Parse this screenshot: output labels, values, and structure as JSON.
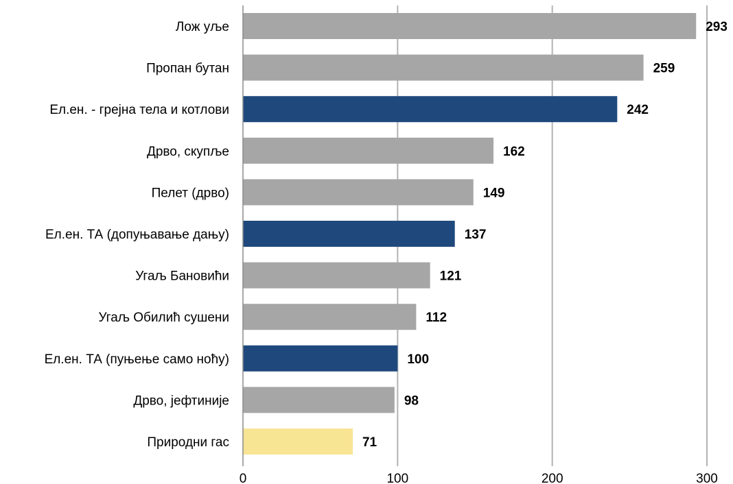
{
  "chart_data": {
    "type": "bar",
    "orientation": "horizontal",
    "categories": [
      "Лож уље",
      "Пропан бутан",
      "Ел.ен. - грејна тела и котлови",
      "Дрво, скупље",
      "Пелет (дрво)",
      "Ел.ен. ТА (допуњавање дању)",
      "Угаљ Бановићи",
      "Угаљ Обилић сушени",
      "Ел.ен. ТА (пуњење само ноћу)",
      "Дрво, јефтиније",
      "Природни гас"
    ],
    "values": [
      293,
      259,
      242,
      162,
      149,
      137,
      121,
      112,
      100,
      98,
      71
    ],
    "value_labels": [
      "293",
      "259",
      "242",
      "162",
      "149",
      "137",
      "121",
      "112",
      "100",
      "98",
      "71"
    ],
    "bar_colors": [
      "#a6a6a6",
      "#a6a6a6",
      "#1f497d",
      "#a6a6a6",
      "#a6a6a6",
      "#1f497d",
      "#a6a6a6",
      "#a6a6a6",
      "#1f497d",
      "#a6a6a6",
      "#f8e594"
    ],
    "xlim": [
      0,
      300
    ],
    "x_ticks": [
      0,
      100,
      200,
      300
    ],
    "x_tick_labels": [
      "0",
      "100",
      "200",
      "300"
    ],
    "grid": "vertical",
    "grid_color": "#b3b3b3",
    "title": "",
    "xlabel": "",
    "ylabel": ""
  }
}
